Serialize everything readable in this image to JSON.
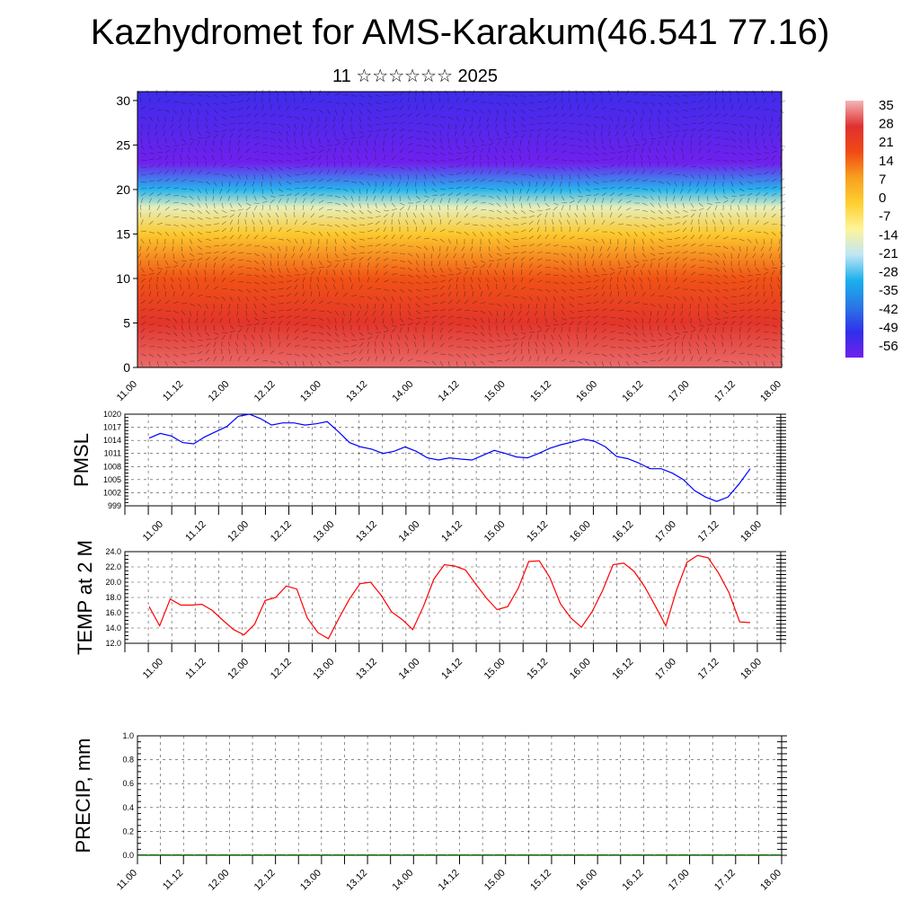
{
  "header": {
    "title": "Kazhydromet for AMS-Karakum(46.541 77.16)",
    "subtitle": "11 ☆☆☆☆☆☆ 2025"
  },
  "chart_data": [
    {
      "type": "heatmap",
      "title": "",
      "xlabel": "",
      "ylabel": "",
      "x_ticks": [
        "11.00",
        "11.12",
        "12.00",
        "12.12",
        "13.00",
        "13.12",
        "14.00",
        "14.12",
        "15.00",
        "15.12",
        "16.00",
        "16.12",
        "17.00",
        "17.12",
        "18.00"
      ],
      "y_ticks": [
        "0",
        "5",
        "10",
        "15",
        "20",
        "25",
        "30"
      ],
      "ylim": [
        0,
        31
      ],
      "colorbar_levels": [
        "35",
        "28",
        "21",
        "14",
        "7",
        "0",
        "-7",
        "-14",
        "-21",
        "-28",
        "-35",
        "-42",
        "-49",
        "-56"
      ],
      "colorbar_colors": [
        "#f4b6b6",
        "#e03030",
        "#f04a14",
        "#f8a020",
        "#fdd030",
        "#fff49a",
        "#bfe6f5",
        "#1ab0ec",
        "#2a78e6",
        "#3030ea",
        "#7020ee"
      ],
      "value_profile_by_height": [
        [
          0,
          30
        ],
        [
          5,
          24
        ],
        [
          10,
          16
        ],
        [
          15,
          0
        ],
        [
          18,
          -14
        ],
        [
          20,
          -28
        ],
        [
          23,
          -56
        ],
        [
          27,
          -52
        ],
        [
          31,
          -49
        ]
      ],
      "overlay": "wind barbs"
    },
    {
      "type": "line",
      "ylabel": "PMSL",
      "x_ticks": [
        "11.00",
        "11.12",
        "12.00",
        "12.12",
        "13.00",
        "13.12",
        "14.00",
        "14.12",
        "15.00",
        "15.12",
        "16.00",
        "16.12",
        "17.00",
        "17.12",
        "18.00"
      ],
      "y_ticks": [
        "999",
        "1002",
        "1005",
        "1008",
        "1011",
        "1014",
        "1017",
        "1020"
      ],
      "ylim": [
        999,
        1020
      ],
      "series": [
        {
          "color": "#0000ff",
          "values": [
            1014.5,
            1015.6,
            1015,
            1013.5,
            1013.2,
            1014.8,
            1016,
            1017.2,
            1019.5,
            1020,
            1019,
            1017.5,
            1018,
            1018,
            1017.5,
            1017.8,
            1018.3,
            1016,
            1013.5,
            1012.5,
            1012,
            1011,
            1011.5,
            1012.5,
            1011.5,
            1010,
            1009.5,
            1010,
            1009.7,
            1009.5,
            1010.6,
            1011.7,
            1011,
            1010.2,
            1010,
            1011,
            1012.2,
            1013,
            1013.6,
            1014.3,
            1013.8,
            1012.5,
            1010.3,
            1009.8,
            1008.8,
            1007.5,
            1007.5,
            1006.5,
            1005,
            1002.5,
            1001,
            1000,
            1001,
            1004,
            1007.5
          ]
        }
      ]
    },
    {
      "type": "line",
      "ylabel": "TEMP at 2 M",
      "x_ticks": [
        "11.00",
        "11.12",
        "12.00",
        "12.12",
        "13.00",
        "13.12",
        "14.00",
        "14.12",
        "15.00",
        "15.12",
        "16.00",
        "16.12",
        "17.00",
        "17.12",
        "18.00"
      ],
      "y_ticks": [
        "12.0",
        "14.0",
        "16.0",
        "18.0",
        "20.0",
        "22.0",
        "24.0"
      ],
      "ylim": [
        12,
        24
      ],
      "series": [
        {
          "color": "#ff0000",
          "values": [
            16.8,
            14.3,
            17.8,
            17,
            17,
            17.1,
            16.3,
            15,
            13.8,
            13.1,
            14.5,
            17.6,
            18,
            19.5,
            19.1,
            15.3,
            13.4,
            12.6,
            15.3,
            17.8,
            19.8,
            20,
            18.3,
            16.1,
            15.1,
            13.8,
            16.8,
            20.4,
            22.3,
            22.1,
            21.6,
            19.7,
            17.9,
            16.4,
            16.8,
            19.2,
            22.7,
            22.8,
            20.6,
            17.2,
            15.3,
            14.1,
            16.1,
            18.9,
            22.3,
            22.5,
            21.4,
            19.4,
            16.9,
            14.3,
            18.9,
            22.6,
            23.5,
            23.2,
            21.2,
            18.6,
            14.8,
            14.7
          ]
        }
      ]
    },
    {
      "type": "bar",
      "ylabel": "PRECIP, mm",
      "x_ticks": [
        "11.00",
        "11.12",
        "12.00",
        "12.12",
        "13.00",
        "13.12",
        "14.00",
        "14.12",
        "15.00",
        "15.12",
        "16.00",
        "16.12",
        "17.00",
        "17.12",
        "18.00"
      ],
      "y_ticks": [
        "0.0",
        "0.2",
        "0.4",
        "0.6",
        "0.8",
        "1.0"
      ],
      "ylim": [
        0,
        1
      ],
      "values": [
        0,
        0,
        0,
        0,
        0,
        0,
        0,
        0,
        0,
        0,
        0,
        0,
        0,
        0,
        0,
        0,
        0,
        0,
        0,
        0,
        0,
        0,
        0,
        0,
        0,
        0,
        0,
        0,
        0,
        0,
        0,
        0,
        0,
        0,
        0,
        0,
        0,
        0,
        0,
        0,
        0,
        0,
        0,
        0,
        0,
        0,
        0,
        0,
        0,
        0,
        0,
        0,
        0,
        0,
        0,
        0
      ],
      "color": "#006000"
    }
  ]
}
